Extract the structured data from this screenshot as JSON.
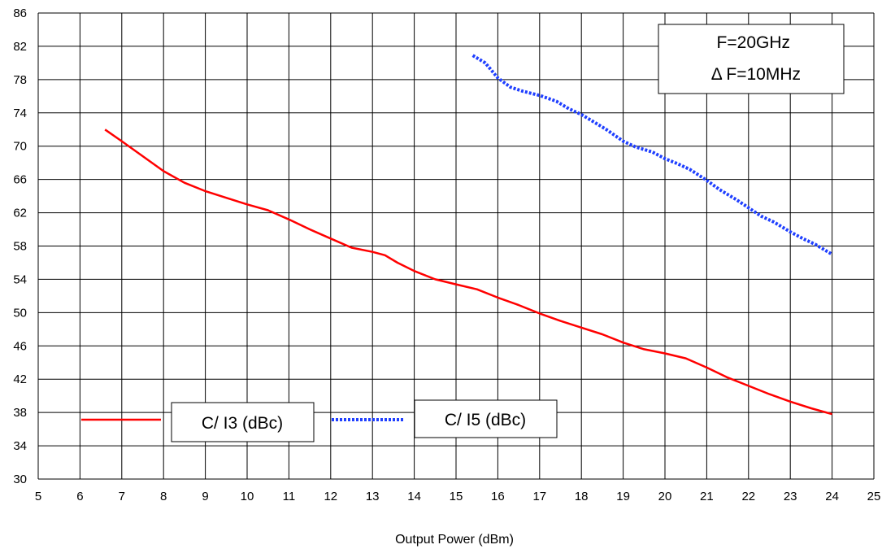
{
  "chart_data": {
    "type": "line",
    "title": "",
    "xlabel": "Output Power (dBm)",
    "ylabel": "",
    "xlim": [
      5,
      25
    ],
    "ylim": [
      30,
      86
    ],
    "xticks": [
      5,
      6,
      7,
      8,
      9,
      10,
      11,
      12,
      13,
      14,
      15,
      16,
      17,
      18,
      19,
      20,
      21,
      22,
      23,
      24,
      25
    ],
    "yticks": [
      30,
      34,
      38,
      42,
      46,
      50,
      54,
      58,
      62,
      66,
      70,
      74,
      78,
      82,
      86
    ],
    "grid": true,
    "annotation": {
      "line1": "F=20GHz",
      "line2": "Δ F=10MHz"
    },
    "series": [
      {
        "name": "C/ I3 (dBc)",
        "color": "#ff0000",
        "style": "solid",
        "x": [
          6.6,
          7.0,
          7.5,
          8.0,
          8.5,
          9.0,
          9.5,
          10.0,
          10.5,
          11.0,
          11.5,
          12.0,
          12.5,
          13.0,
          13.3,
          13.6,
          14.0,
          14.5,
          15.0,
          15.5,
          16.0,
          16.5,
          17.0,
          17.5,
          18.0,
          18.5,
          19.0,
          19.5,
          20.0,
          20.5,
          21.0,
          21.5,
          22.0,
          22.5,
          23.0,
          23.5,
          24.0
        ],
        "y": [
          72.0,
          70.6,
          68.8,
          67.0,
          65.6,
          64.6,
          63.8,
          63.0,
          62.3,
          61.2,
          60.0,
          58.9,
          57.8,
          57.3,
          56.9,
          56.0,
          55.0,
          54.0,
          53.4,
          52.8,
          51.8,
          50.9,
          49.9,
          49.0,
          48.2,
          47.4,
          46.4,
          45.6,
          45.1,
          44.5,
          43.4,
          42.2,
          41.2,
          40.2,
          39.3,
          38.5,
          37.8
        ]
      },
      {
        "name": "C/ I5 (dBc)",
        "color": "#1f3fff",
        "style": "dotted",
        "x": [
          15.4,
          15.7,
          16.0,
          16.3,
          16.6,
          17.0,
          17.4,
          17.7,
          18.0,
          18.3,
          18.6,
          19.0,
          19.3,
          19.7,
          20.0,
          20.3,
          20.6,
          21.0,
          21.3,
          21.7,
          22.0,
          22.3,
          22.6,
          23.0,
          23.3,
          23.6,
          24.0
        ],
        "y": [
          80.9,
          80.0,
          78.2,
          77.1,
          76.6,
          76.1,
          75.4,
          74.5,
          73.8,
          72.9,
          72.0,
          70.6,
          69.9,
          69.3,
          68.5,
          67.9,
          67.2,
          65.9,
          64.8,
          63.6,
          62.6,
          61.6,
          60.9,
          59.7,
          58.9,
          58.2,
          57.0
        ]
      }
    ]
  }
}
